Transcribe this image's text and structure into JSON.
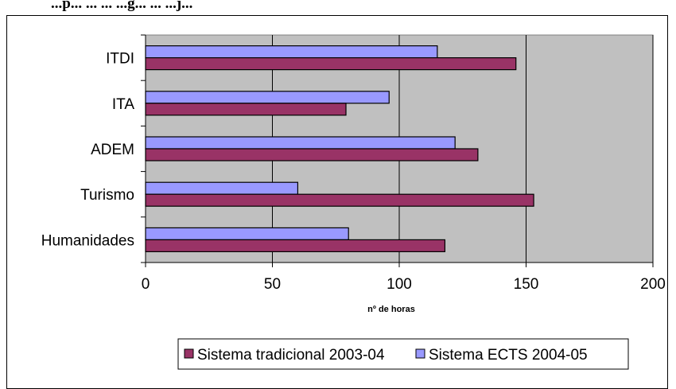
{
  "page": {
    "top_caption": "...p... ... ... ...g... ... ...j..."
  },
  "chart_data": {
    "type": "bar",
    "orientation": "horizontal",
    "categories": [
      "ITDI",
      "ITA",
      "ADEM",
      "Turismo",
      "Humanidades"
    ],
    "series": [
      {
        "name": "Sistema ECTS 2004-05",
        "values": [
          115,
          96,
          122,
          60,
          80
        ],
        "color": "#9999ff"
      },
      {
        "name": "Sistema tradicional 2003-04",
        "values": [
          146,
          79,
          131,
          153,
          118
        ],
        "color": "#993366"
      }
    ],
    "xlabel": "nº de horas",
    "xlim": [
      0,
      200
    ],
    "xticks": [
      0,
      50,
      100,
      150,
      200
    ],
    "grid": true,
    "plot_background": "#c0c0c0",
    "legend": {
      "position": "bottom",
      "entries": [
        "Sistema tradicional 2003-04",
        "Sistema ECTS 2004-05"
      ]
    }
  }
}
